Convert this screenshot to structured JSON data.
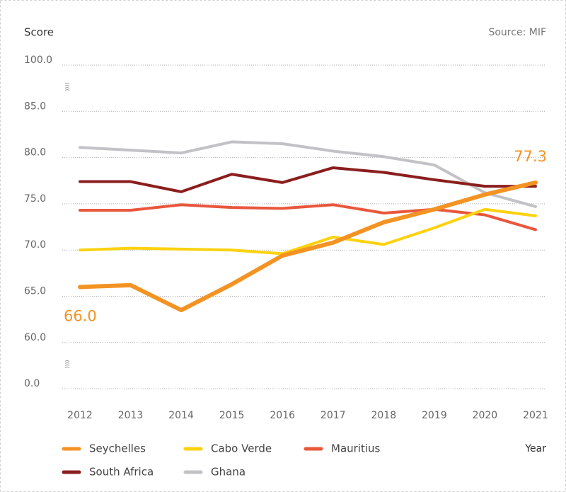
{
  "chart_data": {
    "type": "line",
    "y_label": "Score",
    "source": "Source: MIF",
    "x_label": "Year",
    "categories": [
      "2012",
      "2013",
      "2014",
      "2015",
      "2016",
      "2017",
      "2018",
      "2019",
      "2020",
      "2021"
    ],
    "ylim": [
      0,
      100
    ],
    "yticks": [
      {
        "value": 100,
        "label": "100.0"
      },
      {
        "value": 85,
        "label": "85.0"
      },
      {
        "value": 80,
        "label": "80.0"
      },
      {
        "value": 75,
        "label": "75.0"
      },
      {
        "value": 70,
        "label": "70.0"
      },
      {
        "value": 65,
        "label": "65.0"
      },
      {
        "value": 60,
        "label": "60.0"
      },
      {
        "value": 0,
        "label": "0.0"
      }
    ],
    "grid": true,
    "series": [
      {
        "name": "Seychelles",
        "color": "#f39323",
        "values": [
          66.0,
          66.2,
          63.5,
          66.3,
          69.4,
          70.8,
          73.0,
          74.4,
          76.0,
          77.3
        ],
        "value_labels": [
          "66.0",
          null,
          null,
          null,
          null,
          null,
          null,
          null,
          null,
          "77.3"
        ]
      },
      {
        "name": "Cabo Verde",
        "color": "#fcd20f",
        "values": [
          70.0,
          70.2,
          70.1,
          70.0,
          69.6,
          71.4,
          70.6,
          72.4,
          74.4,
          73.7
        ]
      },
      {
        "name": "Mauritius",
        "color": "#e9573d",
        "values": [
          74.3,
          74.3,
          74.9,
          74.6,
          74.5,
          74.9,
          74.0,
          74.4,
          73.8,
          72.2
        ]
      },
      {
        "name": "South Africa",
        "color": "#8b1e1e",
        "values": [
          77.4,
          77.4,
          76.3,
          78.2,
          77.3,
          78.9,
          78.4,
          77.6,
          76.9,
          76.9
        ]
      },
      {
        "name": "Ghana",
        "color": "#c2c2c6",
        "values": [
          81.1,
          80.8,
          80.5,
          81.7,
          81.5,
          80.7,
          80.1,
          79.2,
          76.2,
          74.7
        ]
      }
    ]
  }
}
